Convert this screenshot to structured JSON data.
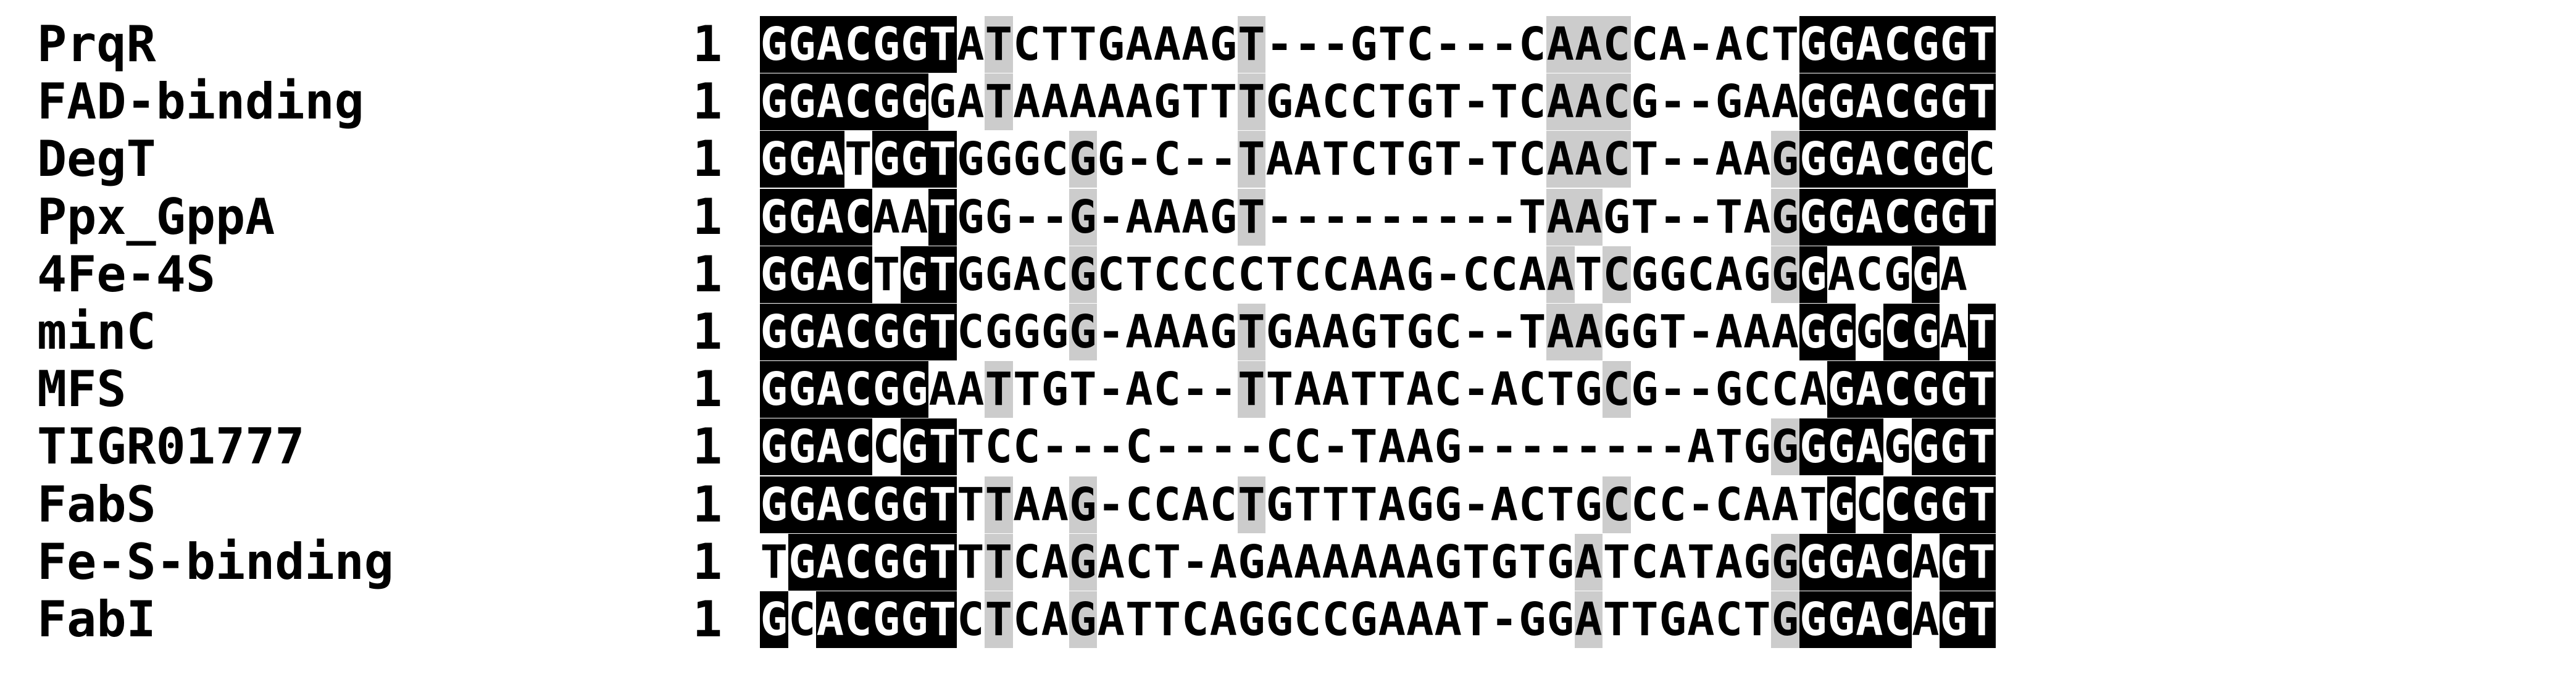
{
  "shading_colors": {
    "identical_background": "#000000",
    "identical_text": "#ffffff",
    "similar_background": "#cccccc",
    "similar_text": "#000000"
  },
  "sequences": [
    {
      "name": "PrqR",
      "start": "1",
      "seq": "GGACGGTATCTTGAAAGT---GTC---CAACCA-ACTGGACGGT",
      "shading": "BBBBGBB---------------------------G---------BBBBBBB"
    },
    {
      "name": "FAD-binding",
      "start": "1",
      "seq": "GGACGGGATAAAAAGTTTGACCTGT-TCAACG--GAAGGACGGT",
      "shading": "BBBBGB-----------------G-----------BBBBBBB"
    },
    {
      "name": "DegT",
      "start": "1",
      "seq": "GGATGGTGGGCGG-C--TAATCTGT-TCAACT--AAGGGACGGC",
      "shading": "BBB.BB----------------G----------GBBBBBB"
    },
    {
      "name": "Ppx_GppA",
      "start": "1",
      "seq": "GGACAATGG--G-AAAGT---------TAAGT--TAGGGACGGT",
      "shading": "BBBB.............................GBBBBBB"
    },
    {
      "name": "4Fe-4S",
      "start": "1",
      "seq": "GGACTGTGGACGCTCCCCTCCAAG-CCAATCGGCAGGGACGGA",
      "shading": "BBBB.B..................................BBBBBB."
    },
    {
      "name": "minC",
      "start": "1",
      "seq": "GGACGGTCGGGG-AAAGTGAAGTGC--TAAGGT-AAAGGGCGAT",
      "shading": "BBBBGB..............G......G.......BBGB.G"
    },
    {
      "name": "MFS",
      "start": "1",
      "seq": "GGACGGAATTGT-AC--TTAATTAC-ACTGCG--GCCAGACGGT",
      "shading": "BBBBG..................G..........GBBBBBB"
    },
    {
      "name": "TIGR01777",
      "start": "1",
      "seq": "GGACCGTTCC---C----CC-TAAG--------ATGGGGAGGGT",
      "shading": "BBBB.B.................................BBB.BB"
    },
    {
      "name": "FabS",
      "start": "1",
      "seq": "GGACGGTTTAAG-CCACTGTTTAGG-ACTGCCC-CAATGCCGGT",
      "shading": "BBBBGB..............G........G.....B..BBB"
    },
    {
      "name": "Fe-S-binding",
      "start": "1",
      "seq": "TGACGGTTTCAGACT-AGAAAAAAGTGTGATCATAGGGGACAGT",
      "shading": "BBBBGB...........G.......G......GBBBBGBB"
    },
    {
      "name": "FabI",
      "start": "1",
      "seq": "GCACGGTCTCAGATTCAGGCCGAAAT-GGATTGACTGGGACAGT",
      "shading": "B.BBGB............G........G.......GBBBBGBB"
    }
  ]
}
